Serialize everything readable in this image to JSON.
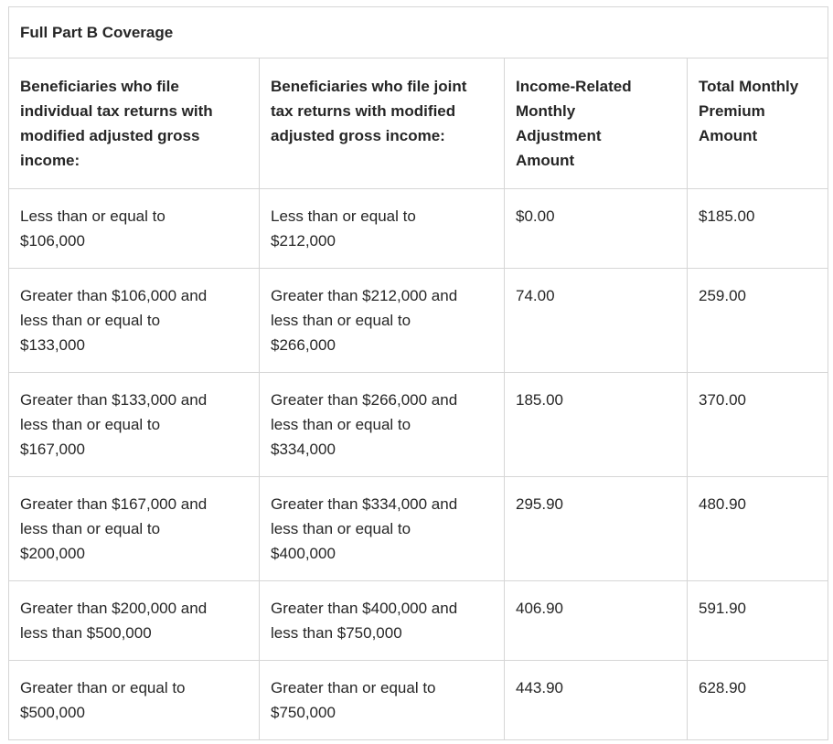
{
  "table": {
    "title": "Full Part B Coverage",
    "columns": [
      "Beneficiaries who file individual tax returns with modified adjusted gross income:",
      "Beneficiaries who file joint tax returns with modified adjusted gross income:",
      "Income-Related Monthly Adjustment Amount",
      "Total Monthly Premium Amount"
    ],
    "rows": [
      [
        "Less than or equal to $106,000",
        "Less than or equal to $212,000",
        "$0.00",
        "$185.00"
      ],
      [
        "Greater than $106,000 and less than or equal to $133,000",
        "Greater than $212,000 and less than or equal to $266,000",
        "74.00",
        "259.00"
      ],
      [
        "Greater than $133,000 and less than or equal to $167,000",
        "Greater than $266,000 and less than or equal to $334,000",
        "185.00",
        "370.00"
      ],
      [
        "Greater than $167,000 and less than or equal to $200,000",
        "Greater than $334,000 and less than or equal to $400,000",
        "295.90",
        "480.90"
      ],
      [
        "Greater than $200,000 and less than $500,000",
        "Greater than $400,000 and less than $750,000",
        "406.90",
        "591.90"
      ],
      [
        "Greater than or equal to $500,000",
        "Greater than or equal to $750,000",
        "443.90",
        "628.90"
      ]
    ]
  },
  "colors": {
    "text": "#262626",
    "border": "#d6d6d6",
    "background": "#ffffff"
  }
}
